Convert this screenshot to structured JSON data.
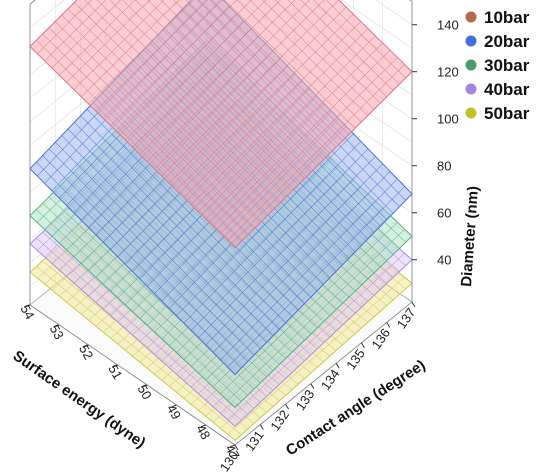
{
  "chart_data": {
    "type": "surface3d",
    "title": "",
    "axes": {
      "x": {
        "label": "Surface energy (dyne)",
        "ticks": [
          "47",
          "48",
          "49",
          "50",
          "51",
          "52",
          "53",
          "54"
        ],
        "range": [
          47,
          54
        ]
      },
      "y": {
        "label": "Contact angle (degree)",
        "ticks": [
          "130",
          "131",
          "132",
          "133",
          "134",
          "135",
          "136",
          "137"
        ],
        "range": [
          130,
          137
        ]
      },
      "z": {
        "label": "Diameter (nm)",
        "ticks": [
          "40",
          "60",
          "80",
          "100",
          "120",
          "140"
        ],
        "range": [
          22,
          150
        ]
      }
    },
    "legend_position": "top-right",
    "series": [
      {
        "name": "10bar",
        "color": "#a0522d",
        "surface_fill": "#f4a7b0",
        "grid_color": "#e07585",
        "z_corners": {
          "front": 106,
          "right": 120,
          "back": 146,
          "left": 132
        }
      },
      {
        "name": "20bar",
        "color": "#2255dd",
        "surface_fill": "#9fb8ef",
        "grid_color": "#4a73d9",
        "z_corners": {
          "front": 52,
          "right": 68,
          "back": 98,
          "left": 80
        }
      },
      {
        "name": "30bar",
        "color": "#2e8b57",
        "surface_fill": "#b2e3c6",
        "grid_color": "#4fb780",
        "z_corners": {
          "front": 38,
          "right": 50,
          "back": 74,
          "left": 60
        }
      },
      {
        "name": "40bar",
        "color": "#9370db",
        "surface_fill": "#dccbf4",
        "grid_color": "#b08ee6",
        "z_corners": {
          "front": 30,
          "right": 40,
          "back": 58,
          "left": 48
        }
      },
      {
        "name": "50bar",
        "color": "#b5b800",
        "surface_fill": "#f0ea9a",
        "grid_color": "#d4c84a",
        "z_corners": {
          "front": 24,
          "right": 30,
          "back": 42,
          "left": 36
        }
      }
    ]
  }
}
